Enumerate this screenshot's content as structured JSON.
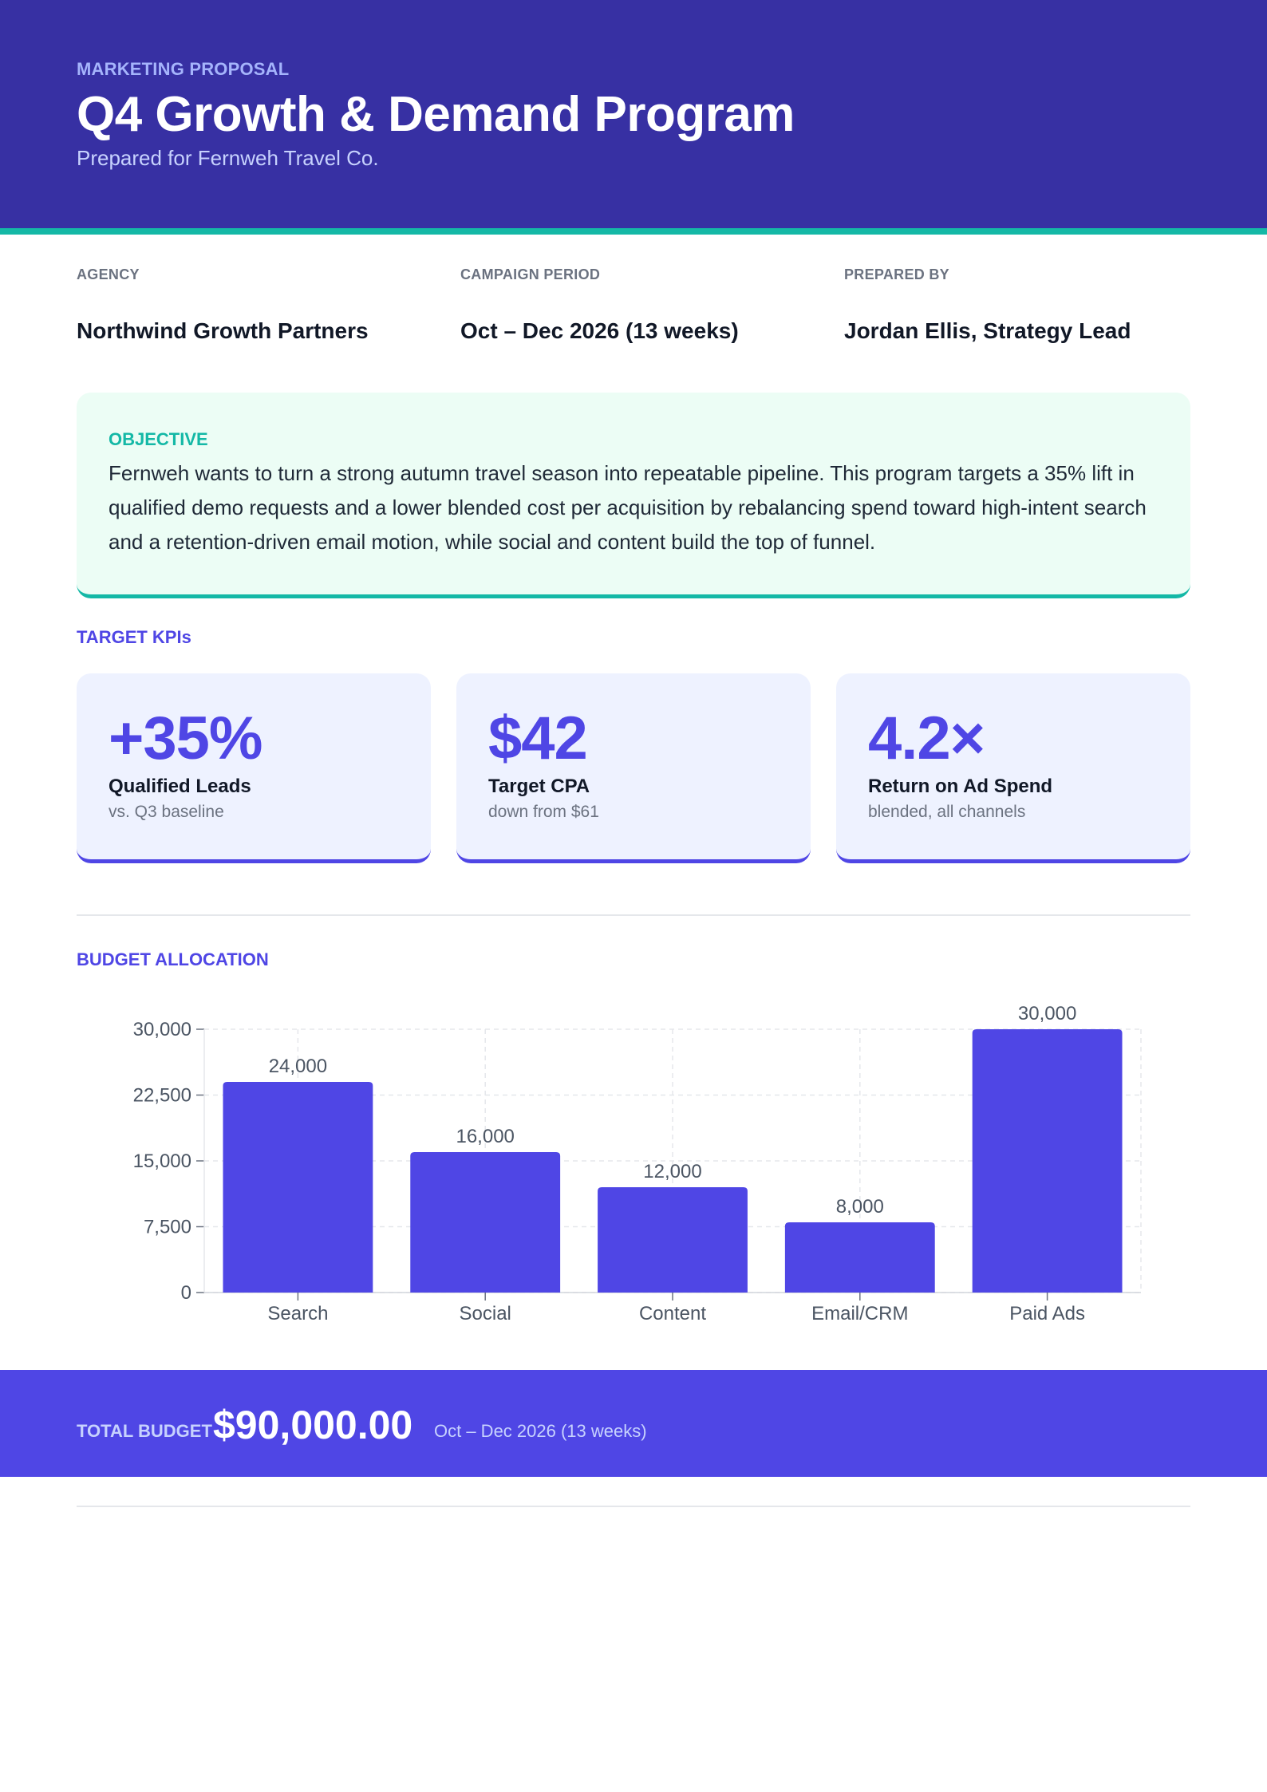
{
  "header": {
    "eyebrow": "MARKETING PROPOSAL",
    "title": "Q4 Growth & Demand Program",
    "subtitle": "Prepared for Fernweh Travel Co."
  },
  "meta": [
    {
      "label": "AGENCY",
      "value": "Northwind Growth Partners"
    },
    {
      "label": "CAMPAIGN PERIOD",
      "value": "Oct – Dec 2026 (13 weeks)"
    },
    {
      "label": "PREPARED BY",
      "value": "Jordan Ellis, Strategy Lead"
    }
  ],
  "objective": {
    "label": "OBJECTIVE",
    "text": "Fernweh wants to turn a strong autumn travel season into repeatable pipeline. This program targets a 35% lift in qualified demo requests and a lower blended cost per acquisition by rebalancing spend toward high-intent search and a retention-driven email motion, while social and content build the top of funnel."
  },
  "kpis": {
    "label": "TARGET KPIs",
    "items": [
      {
        "value": "+35%",
        "label": "Qualified Leads",
        "sub": "vs. Q3 baseline"
      },
      {
        "value": "$42",
        "label": "Target CPA",
        "sub": "down from $61"
      },
      {
        "value": "4.2×",
        "label": "Return on Ad Spend",
        "sub": "blended, all channels"
      }
    ]
  },
  "budget": {
    "label": "BUDGET ALLOCATION"
  },
  "chart_data": {
    "type": "bar",
    "categories": [
      "Search",
      "Social",
      "Content",
      "Email/CRM",
      "Paid Ads"
    ],
    "values": [
      24000,
      16000,
      12000,
      8000,
      30000
    ],
    "data_labels": [
      "24,000",
      "16,000",
      "12,000",
      "8,000",
      "30,000"
    ],
    "yticks": [
      0,
      7500,
      15000,
      22500,
      30000
    ],
    "ytick_labels": [
      "0",
      "7,500",
      "15,000",
      "22,500",
      "30,000"
    ],
    "ylim": [
      0,
      30000
    ],
    "title": "",
    "xlabel": "",
    "ylabel": "",
    "grid": true,
    "bar_color": "#4f46e5"
  },
  "total": {
    "label": "TOTAL BUDGET",
    "value": "$90,000.00",
    "period": "Oct – Dec 2026 (13 weeks)"
  },
  "colors": {
    "header": "#3730a3",
    "accent": "#4f46e5",
    "teal": "#14b8a6"
  }
}
